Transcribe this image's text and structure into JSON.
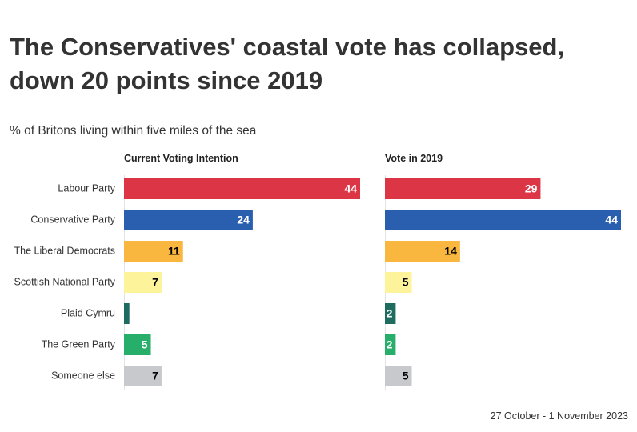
{
  "title": "The Conservatives' coastal vote has collapsed, down 20 points since 2019",
  "subtitle": "% of Britons living within five miles of the sea",
  "footnote": "27 October - 1 November 2023",
  "chart_data": {
    "type": "bar",
    "orientation": "horizontal",
    "categories": [
      "Labour Party",
      "Conservative Party",
      "The Liberal Democrats",
      "Scottish National Party",
      "Plaid Cymru",
      "The Green Party",
      "Someone else"
    ],
    "colors": [
      "#dc3545",
      "#2a5fb0",
      "#f9b73f",
      "#fdf39b",
      "#1e6b5f",
      "#27ae6a",
      "#c8c9cc"
    ],
    "label_colors": [
      "#ffffff",
      "#ffffff",
      "#000000",
      "#000000",
      "#ffffff",
      "#ffffff",
      "#000000"
    ],
    "series": [
      {
        "name": "Current Voting Intention",
        "values": [
          44,
          24,
          11,
          7,
          1,
          5,
          7
        ],
        "labels": [
          "44",
          "24",
          "11",
          "7",
          "",
          "5",
          "7"
        ]
      },
      {
        "name": "Vote in 2019",
        "values": [
          29,
          44,
          14,
          5,
          2,
          2,
          5
        ],
        "labels": [
          "29",
          "44",
          "14",
          "5",
          "2",
          "2",
          "5"
        ]
      }
    ],
    "xlim": [
      0,
      44
    ],
    "grid": false,
    "legend": "none"
  }
}
